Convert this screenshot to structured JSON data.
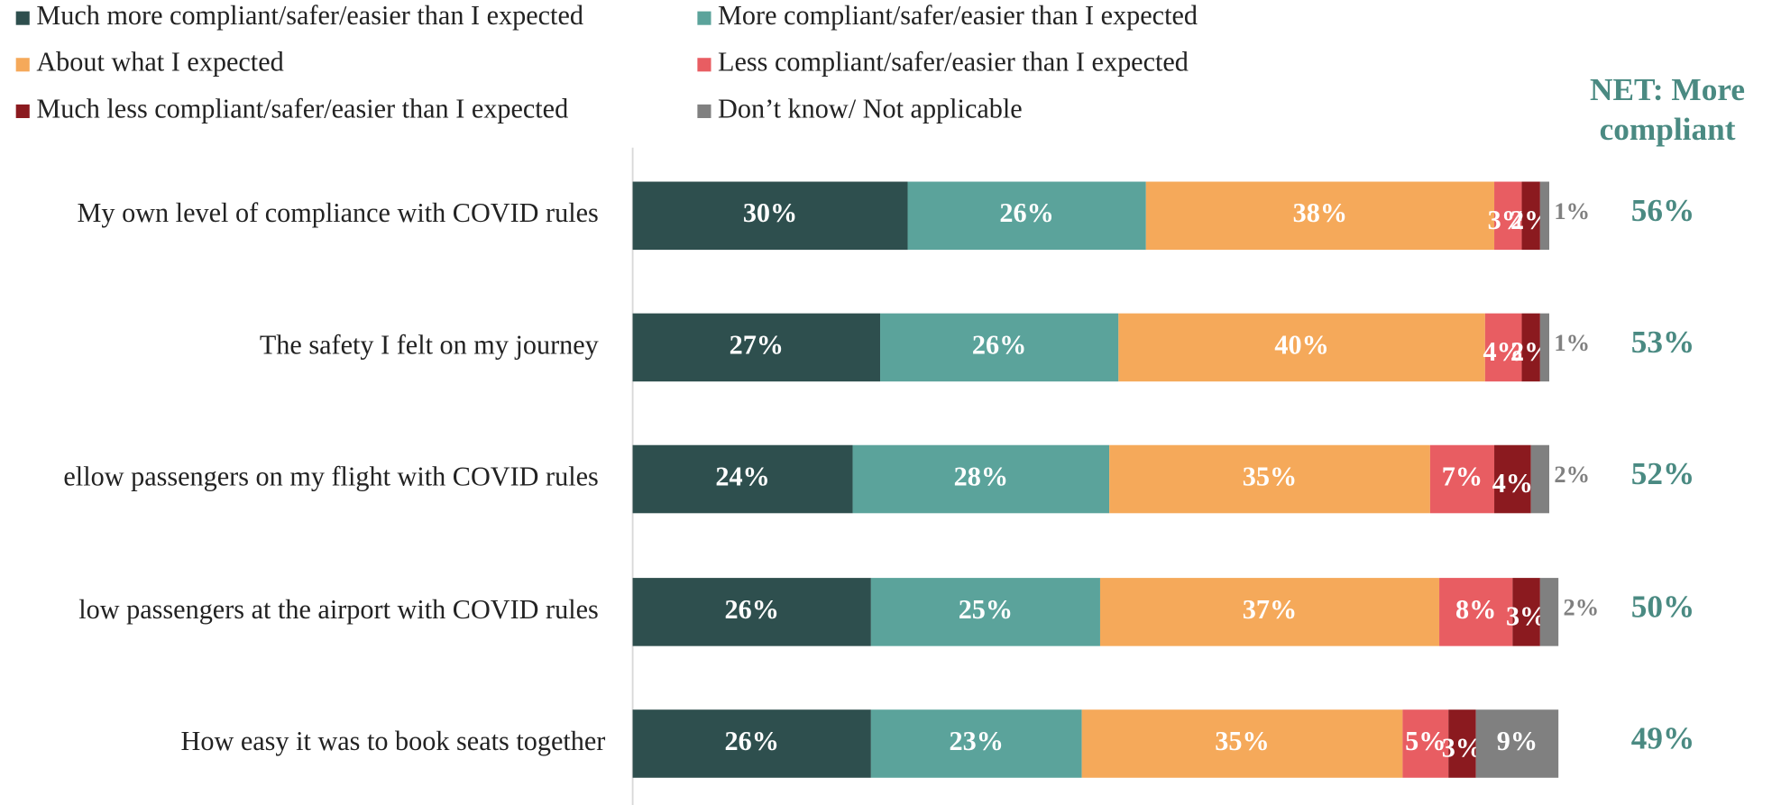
{
  "chart_data": {
    "type": "stacked_bar_horizontal",
    "categories": [
      "My own level of compliance with COVID rules",
      "The safety I felt on my journey",
      "ellow passengers on my flight with COVID rules",
      "low passengers at the airport with COVID rules",
      "How easy it was to book seats together"
    ],
    "xlim": [
      0,
      100
    ],
    "series": [
      {
        "name": "Much more compliant/safer/easier than I expected",
        "color": "#2e4f4e",
        "values": [
          30,
          27,
          24,
          26,
          26
        ],
        "value_labels": [
          "30%",
          "27%",
          "24%",
          "26%",
          "26%"
        ]
      },
      {
        "name": "More compliant/safer/easier than I expected",
        "color": "#5ba39b",
        "values": [
          26,
          26,
          28,
          25,
          23
        ],
        "value_labels": [
          "26%",
          "26%",
          "28%",
          "25%",
          "23%"
        ]
      },
      {
        "name": "About what I expected",
        "color": "#f5a95a",
        "values": [
          38,
          40,
          35,
          37,
          35
        ],
        "value_labels": [
          "38%",
          "40%",
          "35%",
          "37%",
          "35%"
        ]
      },
      {
        "name": "Less compliant/safer/easier than I expected",
        "color": "#e85d62",
        "values": [
          3,
          4,
          7,
          8,
          5
        ],
        "value_labels": [
          "3%",
          "4%",
          "7%",
          "8%",
          "5%"
        ]
      },
      {
        "name": "Much less compliant/safer/easier than I expected",
        "color": "#8b1a1f",
        "values": [
          2,
          2,
          4,
          3,
          3
        ],
        "value_labels": [
          "2%",
          "2%",
          "4%",
          "3%",
          "3%"
        ]
      },
      {
        "name": "Don’t know/ Not applicable",
        "color": "#808080",
        "values": [
          1,
          1,
          2,
          2,
          9
        ],
        "value_labels": [
          "1%",
          "1%",
          "2%",
          "2%",
          "9%"
        ]
      }
    ],
    "net": {
      "title": "NET: More compliant",
      "color": "#4a8a82",
      "values": [
        56,
        53,
        52,
        50,
        49
      ],
      "value_labels": [
        "56%",
        "53%",
        "52%",
        "50%",
        "49%"
      ]
    }
  }
}
